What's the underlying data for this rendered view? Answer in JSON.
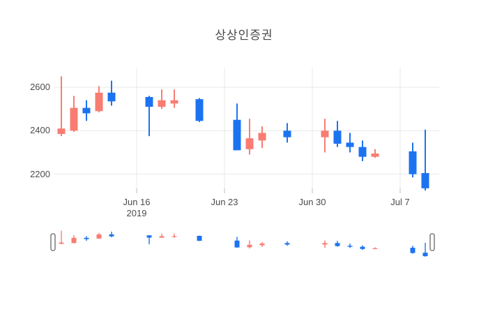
{
  "title": {
    "text": "상상인증권"
  },
  "colors": {
    "up": "#f87c72",
    "down": "#1c73f0",
    "grid": "#e9e9e9",
    "tick_mark": "#bdbdbd",
    "axis_text": "#4c4c4c",
    "title_text": "#4a4a4a",
    "handle_border": "#666666",
    "handle_fill": "#ffffff"
  },
  "chart_data": {
    "type": "candlestick",
    "title": "상상인증권",
    "legend": "none",
    "grid": "on",
    "x_axis": {
      "ticks": [
        {
          "label": "Jun 16",
          "sublabel": "2019",
          "day": 0
        },
        {
          "label": "Jun 23",
          "day": 7
        },
        {
          "label": "Jun 30",
          "day": 14
        },
        {
          "label": "Jul 7",
          "day": 21
        }
      ]
    },
    "y_axis": {
      "ticks": [
        {
          "label": "2200",
          "value": 2200
        },
        {
          "label": "2400",
          "value": 2400
        },
        {
          "label": "2600",
          "value": 2600
        }
      ],
      "approx_range": [
        2125,
        2690
      ]
    },
    "candles": [
      {
        "date": "Jun 10",
        "day": -6,
        "open": 2385,
        "high": 2650,
        "low": 2375,
        "close": 2410
      },
      {
        "date": "Jun 11",
        "day": -5,
        "open": 2400,
        "high": 2560,
        "low": 2395,
        "close": 2505
      },
      {
        "date": "Jun 12",
        "day": -4,
        "open": 2505,
        "high": 2540,
        "low": 2445,
        "close": 2480
      },
      {
        "date": "Jun 13",
        "day": -3,
        "open": 2490,
        "high": 2605,
        "low": 2485,
        "close": 2575
      },
      {
        "date": "Jun 14",
        "day": -2,
        "open": 2575,
        "high": 2630,
        "low": 2515,
        "close": 2535
      },
      {
        "date": "Jun 17",
        "day": 1,
        "open": 2555,
        "high": 2560,
        "low": 2375,
        "close": 2510
      },
      {
        "date": "Jun 18",
        "day": 2,
        "open": 2510,
        "high": 2590,
        "low": 2500,
        "close": 2540
      },
      {
        "date": "Jun 19",
        "day": 3,
        "open": 2525,
        "high": 2590,
        "low": 2505,
        "close": 2540
      },
      {
        "date": "Jun 21",
        "day": 5,
        "open": 2545,
        "high": 2550,
        "low": 2440,
        "close": 2445
      },
      {
        "date": "Jun 24",
        "day": 8,
        "open": 2450,
        "high": 2525,
        "low": 2310,
        "close": 2310
      },
      {
        "date": "Jun 25",
        "day": 9,
        "open": 2315,
        "high": 2455,
        "low": 2290,
        "close": 2365
      },
      {
        "date": "Jun 26",
        "day": 10,
        "open": 2355,
        "high": 2420,
        "low": 2320,
        "close": 2390
      },
      {
        "date": "Jun 28",
        "day": 12,
        "open": 2400,
        "high": 2435,
        "low": 2345,
        "close": 2370
      },
      {
        "date": "Jul 1",
        "day": 15,
        "open": 2370,
        "high": 2455,
        "low": 2300,
        "close": 2400
      },
      {
        "date": "Jul 2",
        "day": 16,
        "open": 2400,
        "high": 2445,
        "low": 2325,
        "close": 2340
      },
      {
        "date": "Jul 3",
        "day": 17,
        "open": 2345,
        "high": 2390,
        "low": 2300,
        "close": 2325
      },
      {
        "date": "Jul 4",
        "day": 18,
        "open": 2325,
        "high": 2355,
        "low": 2260,
        "close": 2280
      },
      {
        "date": "Jul 5",
        "day": 19,
        "open": 2280,
        "high": 2315,
        "low": 2275,
        "close": 2295
      },
      {
        "date": "Jul 8",
        "day": 22,
        "open": 2305,
        "high": 2345,
        "low": 2185,
        "close": 2200
      },
      {
        "date": "Jul 9",
        "day": 23,
        "open": 2205,
        "high": 2405,
        "low": 2125,
        "close": 2135
      }
    ]
  },
  "navigator": {
    "has_left_handle": true,
    "has_right_handle": true,
    "selected_range": "full"
  }
}
